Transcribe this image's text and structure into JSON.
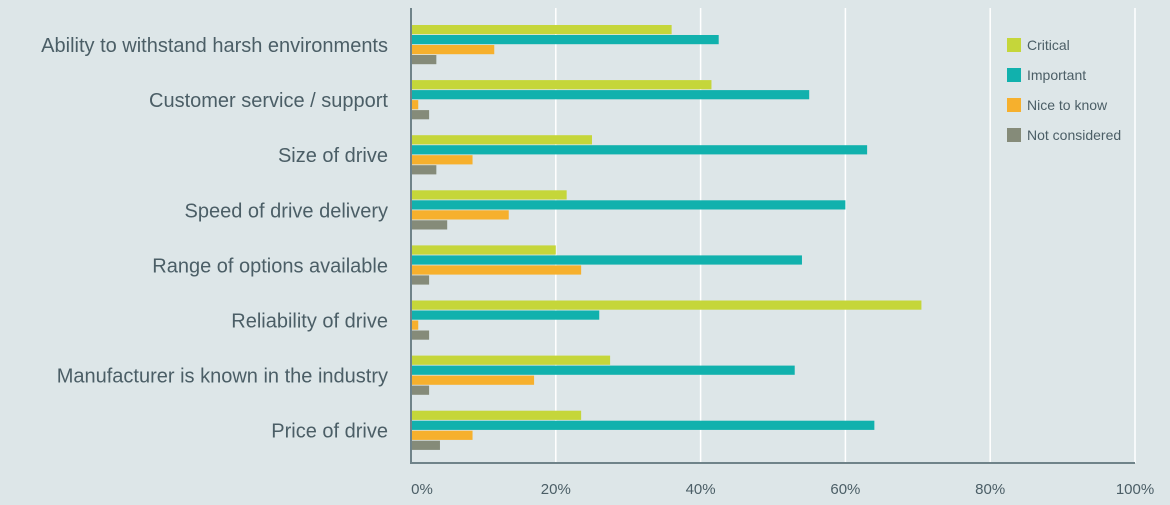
{
  "chart_data": {
    "type": "bar",
    "orientation": "horizontal",
    "title": "",
    "xlabel": "",
    "ylabel": "",
    "xlim": [
      0,
      100
    ],
    "grid": true,
    "legend_position": "top-right",
    "categories": [
      "Ability to withstand harsh environments",
      "Customer service / support",
      "Size of drive",
      "Speed of drive delivery",
      "Range of options available",
      "Reliability of drive",
      "Manufacturer is known in the industry",
      "Price of drive"
    ],
    "x_ticks": [
      "0%",
      "20%",
      "40%",
      "60%",
      "80%",
      "100%"
    ],
    "x_tick_values": [
      0,
      20,
      40,
      60,
      80,
      100
    ],
    "series": [
      {
        "name": "Critical",
        "color": "#c5d63a",
        "values": [
          36,
          41.5,
          25,
          21.5,
          20,
          70.5,
          27.5,
          23.5
        ]
      },
      {
        "name": "Important",
        "color": "#11b1ad",
        "values": [
          42.5,
          55,
          63,
          60,
          54,
          26,
          53,
          64
        ]
      },
      {
        "name": "Nice to know",
        "color": "#f6b02d",
        "values": [
          11.5,
          1,
          8.5,
          13.5,
          23.5,
          1,
          17,
          8.5
        ]
      },
      {
        "name": "Not considered",
        "color": "#858b79",
        "values": [
          3.5,
          2.5,
          3.5,
          5,
          2.5,
          2.5,
          2.5,
          4
        ]
      }
    ]
  }
}
